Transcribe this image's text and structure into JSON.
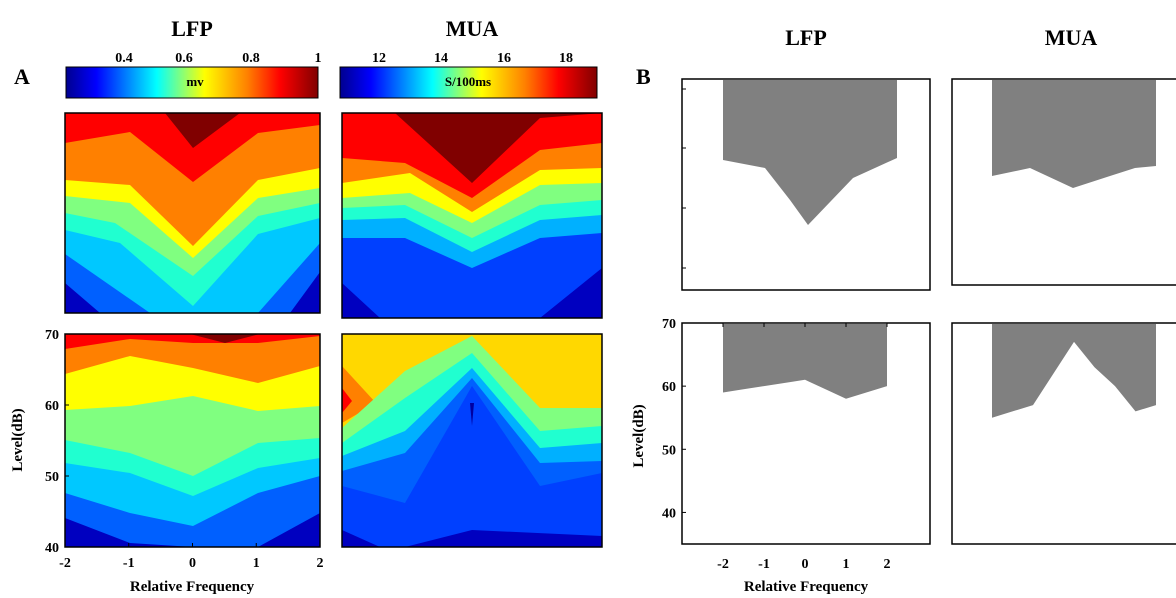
{
  "panel_labels": {
    "a": "A",
    "b": "B"
  },
  "chart_data": [
    {
      "type": "heatmap",
      "panel": "A",
      "column_titles": [
        "LFP",
        "MUA"
      ],
      "colorbars": [
        {
          "name": "LFP",
          "unit_label": "mv",
          "ticks": [
            "0.4",
            "0.6",
            "0.8",
            "1"
          ]
        },
        {
          "name": "MUA",
          "unit_label": "S/100ms",
          "ticks": [
            "12",
            "14",
            "16",
            "18"
          ]
        }
      ],
      "xlabel": "Relative Frequency",
      "ylabel": "Level(dB)",
      "xticks": [
        "-2",
        "-1",
        "0",
        "1",
        "2"
      ],
      "yticks": [
        "40",
        "50",
        "60",
        "70"
      ],
      "xlim": [
        -2,
        2
      ],
      "ylim": [
        40,
        70
      ],
      "colormap": "jet"
    },
    {
      "type": "area",
      "panel": "B",
      "column_titles": [
        "LFP",
        "MUA"
      ],
      "xlabel": "Relative Frequency",
      "ylabel": "Level(dB)",
      "xticks": [
        "-2",
        "-1",
        "0",
        "1",
        "2"
      ],
      "yticks": [
        "40",
        "50",
        "60",
        "70"
      ],
      "ylim": [
        35,
        70
      ],
      "fill_color": "#808080",
      "bottom_LFP_threshold": {
        "x": [
          -2,
          -1.5,
          -1,
          0,
          0.5,
          1,
          2
        ],
        "y": [
          59,
          59.5,
          60,
          61,
          59.5,
          58,
          60
        ]
      },
      "bottom_MUA_threshold": {
        "x": [
          -2,
          -1.5,
          -1,
          0,
          0.5,
          1,
          1.5,
          2
        ],
        "y": [
          55,
          56,
          57,
          67,
          63,
          60,
          56,
          57
        ]
      }
    }
  ]
}
